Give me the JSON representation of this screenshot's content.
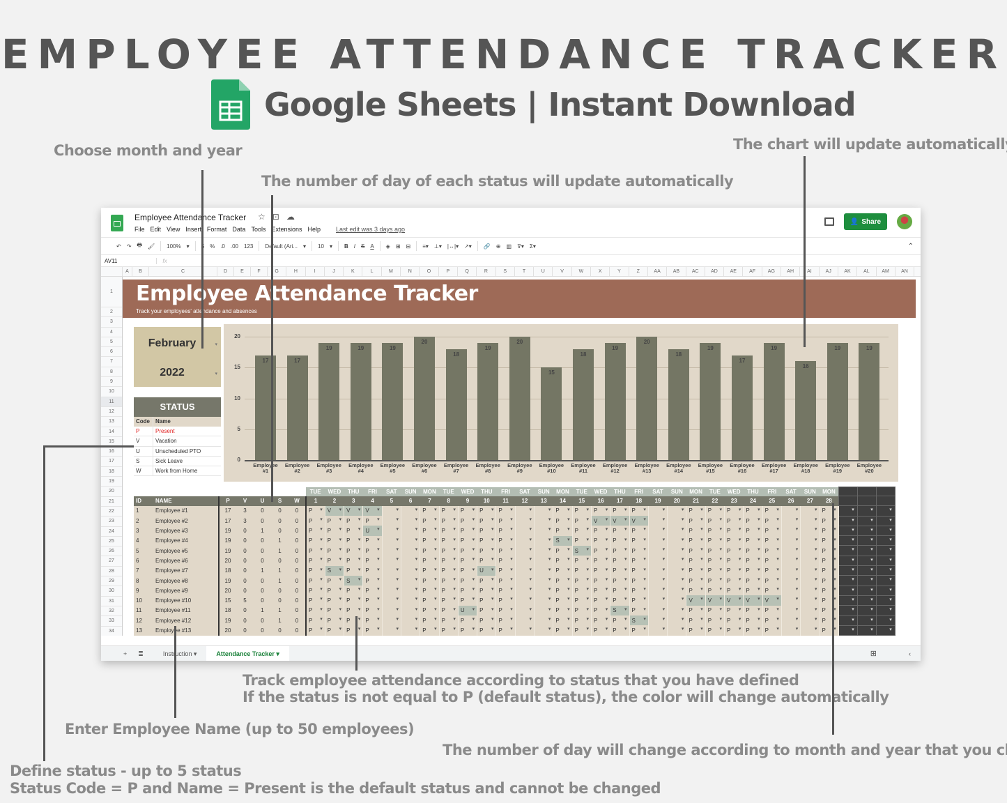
{
  "hero": {
    "title": "EMPLOYEE ATTENDANCE TRACKER",
    "subtitle": "Google Sheets | Instant Download"
  },
  "annotations": {
    "choose_month": "Choose month and year",
    "status_count": "The number of day of each status will update automatically",
    "chart_update": "The chart will update automatically",
    "track_line1": "Track employee attendance according to status that you have defined",
    "track_line2": "If the status is not equal to P (default status), the color will change automatically",
    "enter_name": "Enter Employee Name (up to 50 employees)",
    "day_count": "The number of day will change according to month and year that you chose",
    "define_line1": "Define status - up to 5 status",
    "define_line2": "Status Code = P and Name = Present is the default status and cannot be changed"
  },
  "window": {
    "doc_title": "Employee Attendance Tracker",
    "menu": [
      "File",
      "Edit",
      "View",
      "Insert",
      "Format",
      "Data",
      "Tools",
      "Extensions",
      "Help"
    ],
    "last_edit": "Last edit was 3 days ago",
    "share_label": "Share",
    "toolbar": {
      "zoom": "100%",
      "currency": "$",
      "percent": "%",
      "dec_less": ".0",
      "dec_more": ".00",
      "format_more": "123",
      "font": "Default (Ari...",
      "font_size": "10",
      "bold": "B",
      "italic": "I",
      "strike": "S",
      "text_color": "A"
    },
    "cell_ref": "AV11",
    "fx": "fx",
    "columns": [
      "A",
      "B",
      "C",
      "D",
      "E",
      "F",
      "G",
      "H",
      "I",
      "J",
      "K",
      "L",
      "M",
      "N",
      "O",
      "P",
      "Q",
      "R",
      "S",
      "T",
      "U",
      "V",
      "W",
      "X",
      "Y",
      "Z",
      "AA",
      "AB",
      "AC",
      "AD",
      "AE",
      "AF",
      "AG",
      "AH",
      "AI",
      "AJ",
      "AK",
      "AL",
      "AM",
      "AN"
    ],
    "rows": [
      "1",
      "2",
      "3",
      "4",
      "5",
      "6",
      "7",
      "8",
      "9",
      "10",
      "11",
      "12",
      "13",
      "14",
      "15",
      "16",
      "17",
      "18",
      "19",
      "20",
      "21",
      "22",
      "23",
      "24",
      "25",
      "26",
      "27",
      "28",
      "29",
      "30",
      "31",
      "32",
      "33",
      "34"
    ],
    "selected_row": "11",
    "tabs": [
      {
        "label": "Instruction",
        "active": false
      },
      {
        "label": "Attendance Tracker",
        "active": true
      }
    ]
  },
  "sheet": {
    "banner_title": "Employee Attendance Tracker",
    "banner_subtitle": "Track your employees' attendance and absences",
    "month": "February",
    "year": "2022",
    "status_header": "STATUS",
    "status_cols": [
      "Code",
      "Name"
    ],
    "statuses": [
      {
        "code": "P",
        "name": "Present"
      },
      {
        "code": "V",
        "name": "Vacation"
      },
      {
        "code": "U",
        "name": "Unscheduled PTO"
      },
      {
        "code": "S",
        "name": "Sick Leave"
      },
      {
        "code": "W",
        "name": "Work from Home"
      }
    ],
    "table_headers": {
      "id": "ID",
      "name": "NAME",
      "counts": [
        "P",
        "V",
        "U",
        "S",
        "W"
      ]
    },
    "weekdays": [
      "TUE",
      "WED",
      "THU",
      "FRI",
      "SAT",
      "SUN",
      "MON",
      "TUE",
      "WED",
      "THU",
      "FRI",
      "SAT",
      "SUN",
      "MON",
      "TUE",
      "WED",
      "THU",
      "FRI",
      "SAT",
      "SUN",
      "MON",
      "TUE",
      "WED",
      "THU",
      "FRI",
      "SAT",
      "SUN",
      "MON"
    ],
    "days": [
      "1",
      "2",
      "3",
      "4",
      "5",
      "6",
      "7",
      "8",
      "9",
      "10",
      "11",
      "12",
      "13",
      "14",
      "15",
      "16",
      "17",
      "18",
      "19",
      "20",
      "21",
      "22",
      "23",
      "24",
      "25",
      "26",
      "27",
      "28"
    ],
    "employees": [
      {
        "id": "1",
        "name": "Employee #1",
        "counts": [
          "17",
          "3",
          "0",
          "0",
          "0"
        ],
        "days": [
          "P",
          "V",
          "V",
          "V",
          "",
          "",
          "P",
          "P",
          "P",
          "P",
          "P",
          "",
          "",
          "P",
          "P",
          "P",
          "P",
          "P",
          "",
          "",
          "P",
          "P",
          "P",
          "P",
          "P",
          "",
          "",
          "P"
        ]
      },
      {
        "id": "2",
        "name": "Employee #2",
        "counts": [
          "17",
          "3",
          "0",
          "0",
          "0"
        ],
        "days": [
          "P",
          "P",
          "P",
          "P",
          "",
          "",
          "P",
          "P",
          "P",
          "P",
          "P",
          "",
          "",
          "P",
          "P",
          "V",
          "V",
          "V",
          "",
          "",
          "P",
          "P",
          "P",
          "P",
          "P",
          "",
          "",
          "P"
        ]
      },
      {
        "id": "3",
        "name": "Employee #3",
        "counts": [
          "19",
          "0",
          "1",
          "0",
          "0"
        ],
        "days": [
          "P",
          "P",
          "P",
          "U",
          "",
          "",
          "P",
          "P",
          "P",
          "P",
          "P",
          "",
          "",
          "P",
          "P",
          "P",
          "P",
          "P",
          "",
          "",
          "P",
          "P",
          "P",
          "P",
          "P",
          "",
          "",
          "P"
        ]
      },
      {
        "id": "4",
        "name": "Employee #4",
        "counts": [
          "19",
          "0",
          "0",
          "1",
          "0"
        ],
        "days": [
          "P",
          "P",
          "P",
          "P",
          "",
          "",
          "P",
          "P",
          "P",
          "P",
          "P",
          "",
          "",
          "S",
          "P",
          "P",
          "P",
          "P",
          "",
          "",
          "P",
          "P",
          "P",
          "P",
          "P",
          "",
          "",
          "P"
        ]
      },
      {
        "id": "5",
        "name": "Employee #5",
        "counts": [
          "19",
          "0",
          "0",
          "1",
          "0"
        ],
        "days": [
          "P",
          "P",
          "P",
          "P",
          "",
          "",
          "P",
          "P",
          "P",
          "P",
          "P",
          "",
          "",
          "P",
          "S",
          "P",
          "P",
          "P",
          "",
          "",
          "P",
          "P",
          "P",
          "P",
          "P",
          "",
          "",
          "P"
        ]
      },
      {
        "id": "6",
        "name": "Employee #6",
        "counts": [
          "20",
          "0",
          "0",
          "0",
          "0"
        ],
        "days": [
          "P",
          "P",
          "P",
          "P",
          "",
          "",
          "P",
          "P",
          "P",
          "P",
          "P",
          "",
          "",
          "P",
          "P",
          "P",
          "P",
          "P",
          "",
          "",
          "P",
          "P",
          "P",
          "P",
          "P",
          "",
          "",
          "P"
        ]
      },
      {
        "id": "7",
        "name": "Employee #7",
        "counts": [
          "18",
          "0",
          "1",
          "1",
          "0"
        ],
        "days": [
          "P",
          "S",
          "P",
          "P",
          "",
          "",
          "P",
          "P",
          "P",
          "U",
          "P",
          "",
          "",
          "P",
          "P",
          "P",
          "P",
          "P",
          "",
          "",
          "P",
          "P",
          "P",
          "P",
          "P",
          "",
          "",
          "P"
        ]
      },
      {
        "id": "8",
        "name": "Employee #8",
        "counts": [
          "19",
          "0",
          "0",
          "1",
          "0"
        ],
        "days": [
          "P",
          "P",
          "S",
          "P",
          "",
          "",
          "P",
          "P",
          "P",
          "P",
          "P",
          "",
          "",
          "P",
          "P",
          "P",
          "P",
          "P",
          "",
          "",
          "P",
          "P",
          "P",
          "P",
          "P",
          "",
          "",
          "P"
        ]
      },
      {
        "id": "9",
        "name": "Employee #9",
        "counts": [
          "20",
          "0",
          "0",
          "0",
          "0"
        ],
        "days": [
          "P",
          "P",
          "P",
          "P",
          "",
          "",
          "P",
          "P",
          "P",
          "P",
          "P",
          "",
          "",
          "P",
          "P",
          "P",
          "P",
          "P",
          "",
          "",
          "P",
          "P",
          "P",
          "P",
          "P",
          "",
          "",
          "P"
        ]
      },
      {
        "id": "10",
        "name": "Employee #10",
        "counts": [
          "15",
          "5",
          "0",
          "0",
          "0"
        ],
        "days": [
          "P",
          "P",
          "P",
          "P",
          "",
          "",
          "P",
          "P",
          "P",
          "P",
          "P",
          "",
          "",
          "P",
          "P",
          "P",
          "P",
          "P",
          "",
          "",
          "V",
          "V",
          "V",
          "V",
          "V",
          "",
          "",
          "P"
        ]
      },
      {
        "id": "11",
        "name": "Employee #11",
        "counts": [
          "18",
          "0",
          "1",
          "1",
          "0"
        ],
        "days": [
          "P",
          "P",
          "P",
          "P",
          "",
          "",
          "P",
          "P",
          "U",
          "P",
          "P",
          "",
          "",
          "P",
          "P",
          "P",
          "S",
          "P",
          "",
          "",
          "P",
          "P",
          "P",
          "P",
          "P",
          "",
          "",
          "P"
        ]
      },
      {
        "id": "12",
        "name": "Employee #12",
        "counts": [
          "19",
          "0",
          "0",
          "1",
          "0"
        ],
        "days": [
          "P",
          "P",
          "P",
          "P",
          "",
          "",
          "P",
          "P",
          "P",
          "P",
          "P",
          "",
          "",
          "P",
          "P",
          "P",
          "P",
          "S",
          "",
          "",
          "P",
          "P",
          "P",
          "P",
          "P",
          "",
          "",
          "P"
        ]
      },
      {
        "id": "13",
        "name": "Employee #13",
        "counts": [
          "20",
          "0",
          "0",
          "0",
          "0"
        ],
        "days": [
          "P",
          "P",
          "P",
          "P",
          "",
          "",
          "P",
          "P",
          "P",
          "P",
          "P",
          "",
          "",
          "P",
          "P",
          "P",
          "P",
          "P",
          "",
          "",
          "P",
          "P",
          "P",
          "P",
          "P",
          "",
          "",
          "P"
        ]
      }
    ]
  },
  "colors": {
    "banner": "#9e6a57",
    "month_box": "#d2c7a5",
    "header_olive": "#76776a",
    "table_bg": "#e1d8c9",
    "highlight": "#b7c1b5",
    "bar": "#747664",
    "present_red": "#e02020",
    "share_green": "#1e8e3e"
  },
  "chart_data": {
    "type": "bar",
    "title": "",
    "categories": [
      "Employee #1",
      "Employee #2",
      "Employee #3",
      "Employee #4",
      "Employee #5",
      "Employee #6",
      "Employee #7",
      "Employee #8",
      "Employee #9",
      "Employee #10",
      "Employee #11",
      "Employee #12",
      "Employee #13",
      "Employee #14",
      "Employee #15",
      "Employee #16",
      "Employee #17",
      "Employee #18",
      "Employee #19",
      "Employee #20"
    ],
    "values": [
      17,
      17,
      19,
      19,
      19,
      20,
      18,
      19,
      20,
      15,
      18,
      19,
      20,
      18,
      19,
      17,
      19,
      16,
      19,
      19
    ],
    "xlabel": "",
    "ylabel": "",
    "ylim": [
      0,
      20
    ],
    "yticks": [
      0,
      5,
      10,
      15,
      20
    ],
    "grid": true,
    "data_labels": true,
    "legend": "none"
  }
}
